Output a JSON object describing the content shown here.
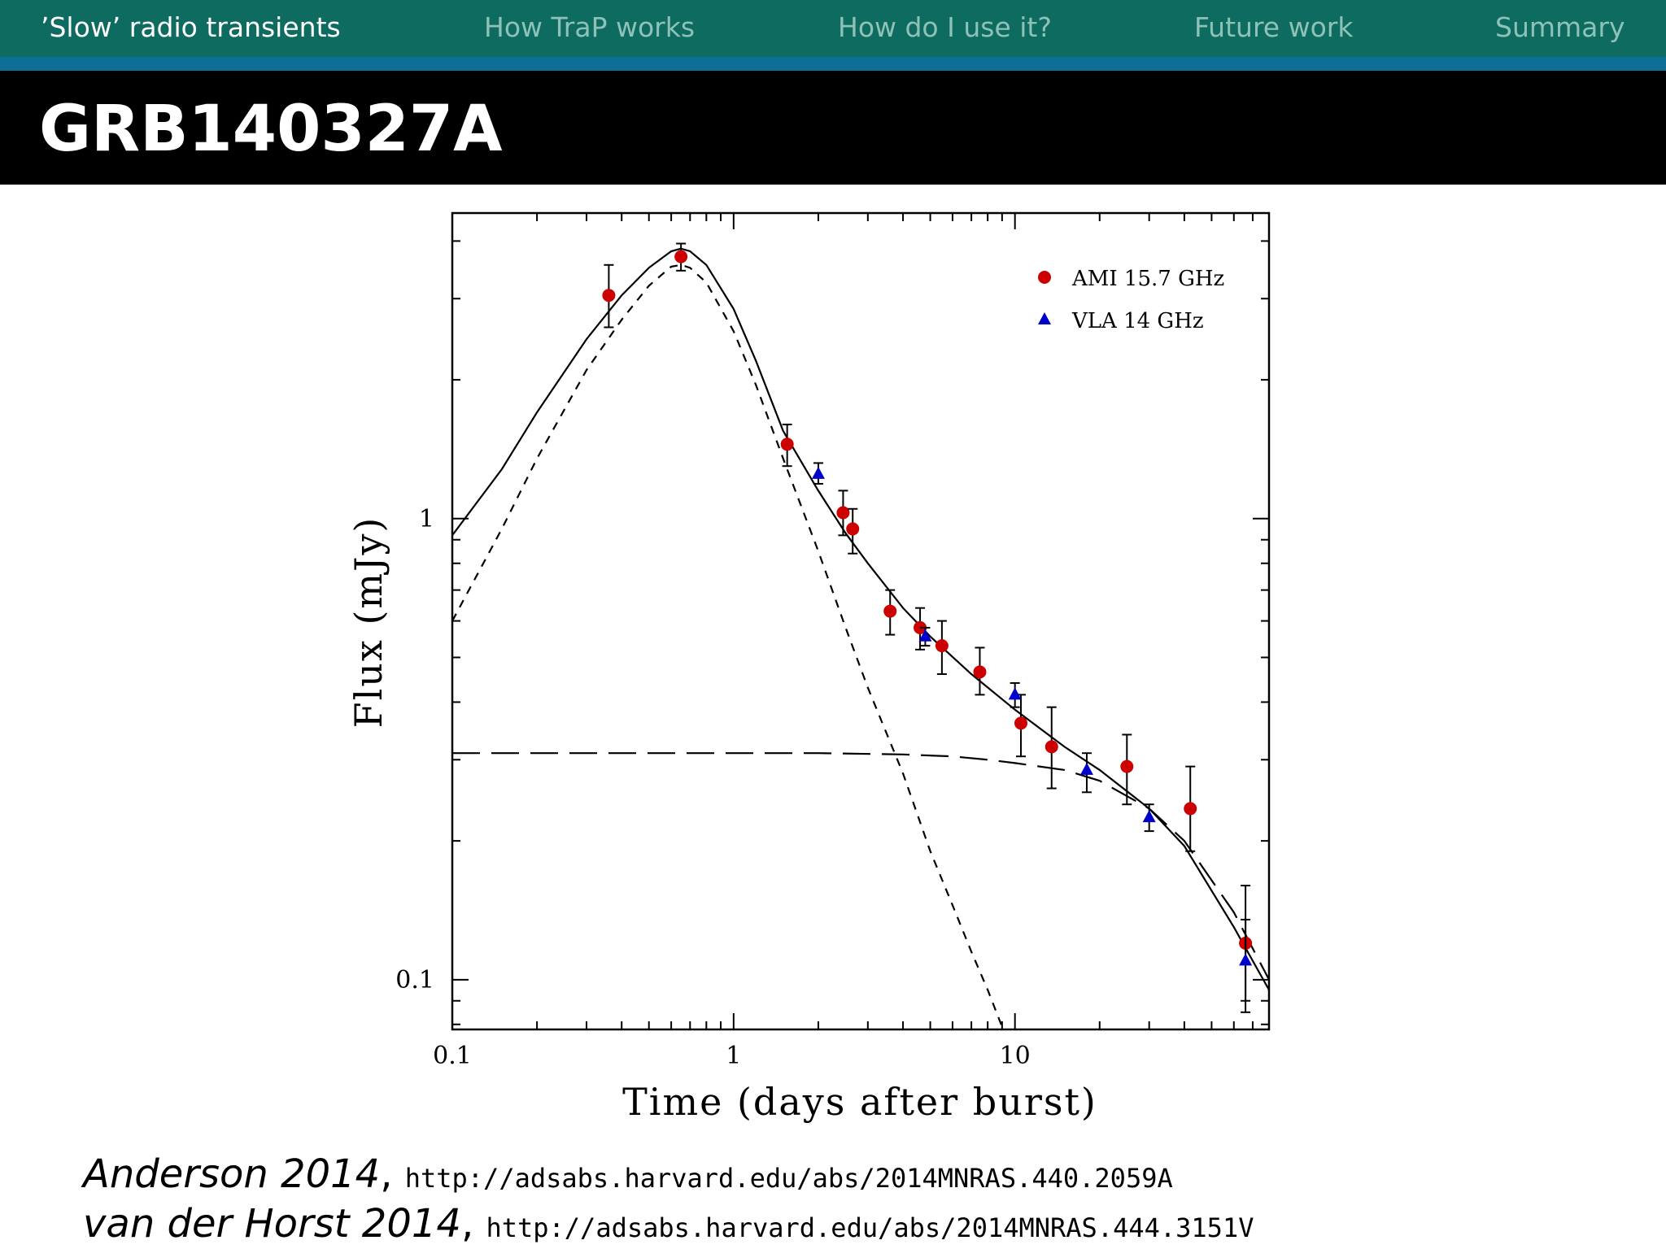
{
  "nav": {
    "items": [
      {
        "label": "’Slow’ radio transients",
        "active": true
      },
      {
        "label": "How TraP works",
        "active": false
      },
      {
        "label": "How do I use it?",
        "active": false
      },
      {
        "label": "Future work",
        "active": false
      },
      {
        "label": "Summary",
        "active": false
      }
    ]
  },
  "slide": {
    "title": "GRB140327A"
  },
  "chart_data": {
    "type": "scatter",
    "title": "",
    "xlabel": "Time (days after burst)",
    "ylabel": "Flux (mJy)",
    "xscale": "log",
    "yscale": "log",
    "xlim": [
      0.1,
      80
    ],
    "ylim": [
      0.078,
      4.6
    ],
    "x_tick_labels": [
      "0.1",
      "1",
      "10"
    ],
    "y_tick_labels": [
      "0.1",
      "1"
    ],
    "grid": false,
    "legend_position": "top-right",
    "series": [
      {
        "name": "AMI 15.7 GHz",
        "marker": "circle",
        "color": "#cc0000",
        "points": [
          {
            "x": 0.36,
            "y": 3.05,
            "lo": 2.6,
            "hi": 3.55
          },
          {
            "x": 0.65,
            "y": 3.7,
            "lo": 3.45,
            "hi": 3.95
          },
          {
            "x": 1.55,
            "y": 1.45,
            "lo": 1.3,
            "hi": 1.6
          },
          {
            "x": 2.45,
            "y": 1.03,
            "lo": 0.92,
            "hi": 1.15
          },
          {
            "x": 2.65,
            "y": 0.95,
            "lo": 0.84,
            "hi": 1.05
          },
          {
            "x": 3.6,
            "y": 0.63,
            "lo": 0.56,
            "hi": 0.7
          },
          {
            "x": 4.6,
            "y": 0.58,
            "lo": 0.52,
            "hi": 0.64
          },
          {
            "x": 5.5,
            "y": 0.53,
            "lo": 0.46,
            "hi": 0.6
          },
          {
            "x": 7.5,
            "y": 0.465,
            "lo": 0.415,
            "hi": 0.525
          },
          {
            "x": 10.5,
            "y": 0.36,
            "lo": 0.305,
            "hi": 0.415
          },
          {
            "x": 13.5,
            "y": 0.32,
            "lo": 0.26,
            "hi": 0.39
          },
          {
            "x": 25.0,
            "y": 0.29,
            "lo": 0.24,
            "hi": 0.34
          },
          {
            "x": 42.0,
            "y": 0.235,
            "lo": 0.19,
            "hi": 0.29
          },
          {
            "x": 66.0,
            "y": 0.12,
            "lo": 0.085,
            "hi": 0.16
          }
        ]
      },
      {
        "name": "VLA 14 GHz",
        "marker": "triangle",
        "color": "#0000cc",
        "points": [
          {
            "x": 2.0,
            "y": 1.25,
            "lo": 1.19,
            "hi": 1.32
          },
          {
            "x": 4.8,
            "y": 0.555,
            "lo": 0.53,
            "hi": 0.58
          },
          {
            "x": 10.0,
            "y": 0.415,
            "lo": 0.39,
            "hi": 0.44
          },
          {
            "x": 18.0,
            "y": 0.285,
            "lo": 0.255,
            "hi": 0.31
          },
          {
            "x": 30.0,
            "y": 0.225,
            "lo": 0.21,
            "hi": 0.24
          },
          {
            "x": 66.0,
            "y": 0.11,
            "lo": 0.09,
            "hi": 0.135
          }
        ]
      }
    ],
    "models": [
      {
        "style": "solid",
        "x": [
          0.1,
          0.15,
          0.2,
          0.3,
          0.4,
          0.5,
          0.6,
          0.65,
          0.7,
          0.8,
          1.0,
          1.2,
          1.5,
          2.0,
          2.5,
          3.0,
          4.0,
          5.0,
          7.0,
          10.0,
          15.0,
          20.0,
          30.0,
          40.0,
          60.0,
          80.0
        ],
        "y": [
          0.92,
          1.28,
          1.7,
          2.45,
          3.05,
          3.5,
          3.8,
          3.85,
          3.8,
          3.55,
          2.85,
          2.2,
          1.55,
          1.15,
          0.93,
          0.8,
          0.64,
          0.555,
          0.46,
          0.385,
          0.32,
          0.285,
          0.235,
          0.195,
          0.13,
          0.095
        ]
      },
      {
        "style": "short-dash",
        "x": [
          0.1,
          0.15,
          0.2,
          0.3,
          0.4,
          0.5,
          0.6,
          0.65,
          0.7,
          0.8,
          1.0,
          1.2,
          1.5,
          2.0,
          2.5,
          3.0,
          4.0,
          5.0,
          6.0,
          7.0,
          8.0,
          9.0
        ],
        "y": [
          0.6,
          0.95,
          1.35,
          2.1,
          2.7,
          3.2,
          3.52,
          3.55,
          3.5,
          3.25,
          2.55,
          1.95,
          1.35,
          0.85,
          0.58,
          0.43,
          0.28,
          0.19,
          0.145,
          0.115,
          0.095,
          0.079
        ]
      },
      {
        "style": "long-dash",
        "x": [
          0.1,
          0.5,
          1,
          2,
          4,
          6,
          8,
          10,
          15,
          20,
          30,
          40,
          60,
          80
        ],
        "y": [
          0.31,
          0.31,
          0.31,
          0.31,
          0.308,
          0.305,
          0.3,
          0.295,
          0.285,
          0.27,
          0.235,
          0.2,
          0.14,
          0.1
        ]
      }
    ]
  },
  "citations": [
    {
      "author": "Anderson 2014",
      "url": "http://adsabs.harvard.edu/abs/2014MNRAS.440.2059A"
    },
    {
      "author": "van der Horst 2014",
      "url": "http://adsabs.harvard.edu/abs/2014MNRAS.444.3151V"
    }
  ]
}
